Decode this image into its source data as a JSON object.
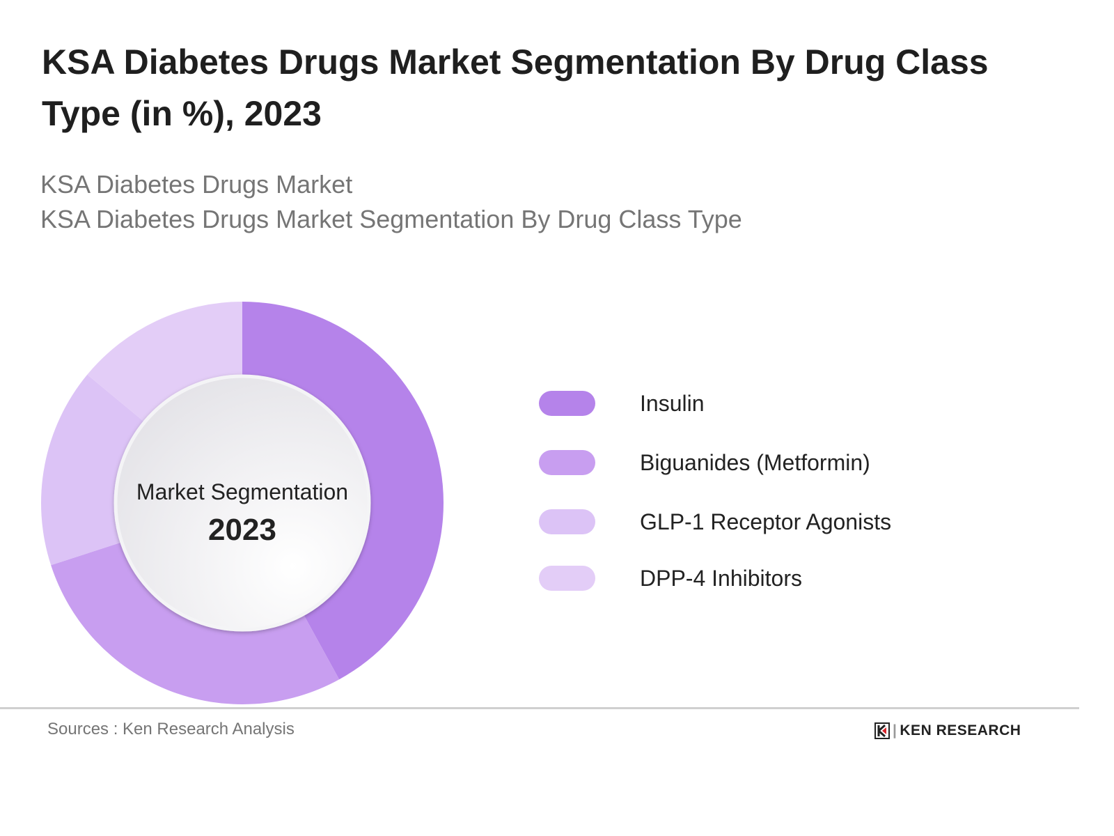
{
  "title": "KSA Diabetes Drugs Market Segmentation By Drug Class Type (in %), 2023",
  "subtitle_lines": [
    "KSA Diabetes Drugs Market",
    "KSA Diabetes Drugs Market Segmentation By Drug Class Type"
  ],
  "chart_data": {
    "type": "pie",
    "variant": "donut",
    "title": "KSA Diabetes Drugs Market Segmentation By Drug Class Type (in %), 2023",
    "center_label": "Market Segmentation",
    "center_value": "2023",
    "categories": [
      "Insulin",
      "Biguanides (Metformin)",
      "GLP-1 Receptor Agonists",
      "DPP-4 Inhibitors"
    ],
    "values": [
      42,
      28,
      16,
      14
    ],
    "colors": [
      "#b583ea",
      "#c89ef0",
      "#dcc3f6",
      "#e3cdf7"
    ],
    "legend_position": "right",
    "start_angle": "top, clockwise"
  },
  "footer": {
    "source": "Sources : Ken Research Analysis",
    "logo_text": "KEN RESEARCH"
  }
}
